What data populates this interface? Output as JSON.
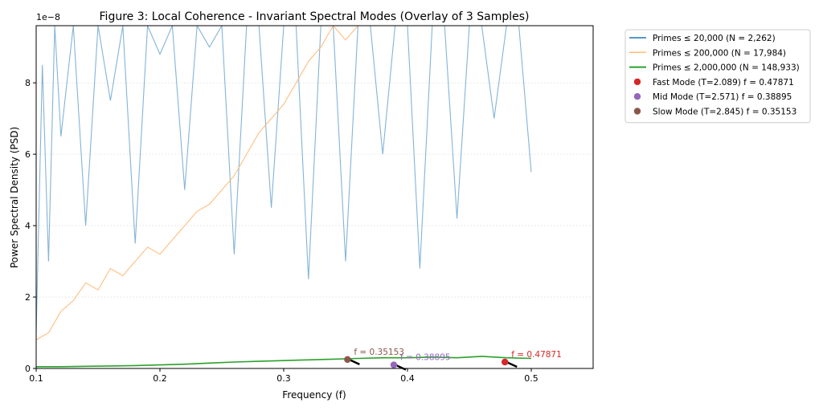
{
  "chart_data": {
    "type": "line",
    "title": "Figure 3: Local Coherence - Invariant Spectral Modes (Overlay of 3 Samples)",
    "xlabel": "Frequency (f)",
    "ylabel": "Power Spectral Density (PSD)",
    "offset_label": "1e−8",
    "xlim": [
      0.1,
      0.55
    ],
    "ylim": [
      0,
      9.6
    ],
    "x_ticks": [
      "0.1",
      "0.2",
      "0.3",
      "0.4",
      "0.5"
    ],
    "y_ticks": [
      "0",
      "2",
      "4",
      "6",
      "8"
    ],
    "y_grid": true,
    "legend_position": "outside-right",
    "series": [
      {
        "name": "Primes ≤ 20,000 (N = 2,262)",
        "color": "#1f77b4",
        "style": "line",
        "x": [
          0.1,
          0.105,
          0.11,
          0.115,
          0.12,
          0.13,
          0.14,
          0.15,
          0.16,
          0.17,
          0.18,
          0.19,
          0.2,
          0.21,
          0.22,
          0.23,
          0.24,
          0.25,
          0.26,
          0.27,
          0.28,
          0.29,
          0.3,
          0.31,
          0.32,
          0.33,
          0.34,
          0.35,
          0.36,
          0.37,
          0.38,
          0.39,
          0.4,
          0.41,
          0.42,
          0.43,
          0.44,
          0.45,
          0.46,
          0.47,
          0.48,
          0.49,
          0.5
        ],
        "y": [
          1.0,
          8.5,
          3.0,
          9.6,
          6.5,
          9.6,
          4.0,
          9.6,
          7.5,
          9.6,
          3.5,
          9.6,
          8.8,
          9.6,
          5.0,
          9.6,
          9.0,
          9.6,
          3.2,
          9.6,
          9.6,
          4.5,
          9.6,
          9.6,
          2.5,
          9.6,
          9.6,
          3.0,
          9.6,
          9.6,
          6.0,
          9.6,
          9.6,
          2.8,
          9.6,
          9.6,
          4.2,
          9.6,
          9.6,
          7.0,
          9.6,
          9.6,
          5.5
        ]
      },
      {
        "name": "Primes ≤ 200,000 (N = 17,984)",
        "color": "#ffbb78",
        "style": "line",
        "x": [
          0.1,
          0.11,
          0.12,
          0.13,
          0.14,
          0.15,
          0.16,
          0.17,
          0.18,
          0.19,
          0.2,
          0.21,
          0.22,
          0.23,
          0.24,
          0.25,
          0.26,
          0.27,
          0.28,
          0.29,
          0.3,
          0.31,
          0.32,
          0.33,
          0.34,
          0.35,
          0.36,
          0.37,
          0.38,
          0.39,
          0.4,
          0.41,
          0.42,
          0.43,
          0.44,
          0.45,
          0.46,
          0.47,
          0.48,
          0.49,
          0.5
        ],
        "y": [
          0.8,
          1.0,
          1.6,
          1.9,
          2.4,
          2.2,
          2.8,
          2.6,
          3.0,
          3.4,
          3.2,
          3.6,
          4.0,
          4.4,
          4.6,
          5.0,
          5.4,
          6.0,
          6.6,
          7.0,
          7.4,
          8.0,
          8.6,
          9.0,
          9.6,
          9.2,
          9.6,
          9.6,
          9.6,
          9.6,
          9.6,
          9.6,
          9.6,
          9.6,
          9.6,
          9.6,
          9.6,
          9.6,
          9.6,
          9.6,
          9.6
        ]
      },
      {
        "name": "Primes ≤ 2,000,000 (N = 148,933)",
        "color": "#2ca02c",
        "style": "line",
        "x": [
          0.1,
          0.12,
          0.14,
          0.16,
          0.18,
          0.2,
          0.22,
          0.24,
          0.26,
          0.28,
          0.3,
          0.32,
          0.34,
          0.36,
          0.38,
          0.4,
          0.42,
          0.44,
          0.46,
          0.48,
          0.5
        ],
        "y": [
          0.05,
          0.05,
          0.06,
          0.07,
          0.08,
          0.1,
          0.12,
          0.15,
          0.18,
          0.2,
          0.22,
          0.24,
          0.26,
          0.28,
          0.3,
          0.3,
          0.32,
          0.3,
          0.34,
          0.3,
          0.28
        ]
      },
      {
        "name": "Fast Mode (T=2.089) f = 0.47871",
        "color": "#d62728",
        "style": "point",
        "x": [
          0.47871
        ],
        "y": [
          0.18
        ]
      },
      {
        "name": "Mid Mode (T=2.571) f = 0.38895",
        "color": "#9467bd",
        "style": "point",
        "x": [
          0.38895
        ],
        "y": [
          0.1
        ]
      },
      {
        "name": "Slow Mode (T=2.845) f = 0.35153",
        "color": "#8c564b",
        "style": "point",
        "x": [
          0.35153
        ],
        "y": [
          0.25
        ]
      }
    ],
    "annotations": [
      {
        "text": "f = 0.47871",
        "x": 0.47871,
        "y": 0.18,
        "color": "#d62728"
      },
      {
        "text": "f = 0.38895",
        "x": 0.38895,
        "y": 0.1,
        "color": "#9467bd"
      },
      {
        "text": "f = 0.35153",
        "x": 0.35153,
        "y": 0.25,
        "color": "#8c564b"
      }
    ]
  }
}
